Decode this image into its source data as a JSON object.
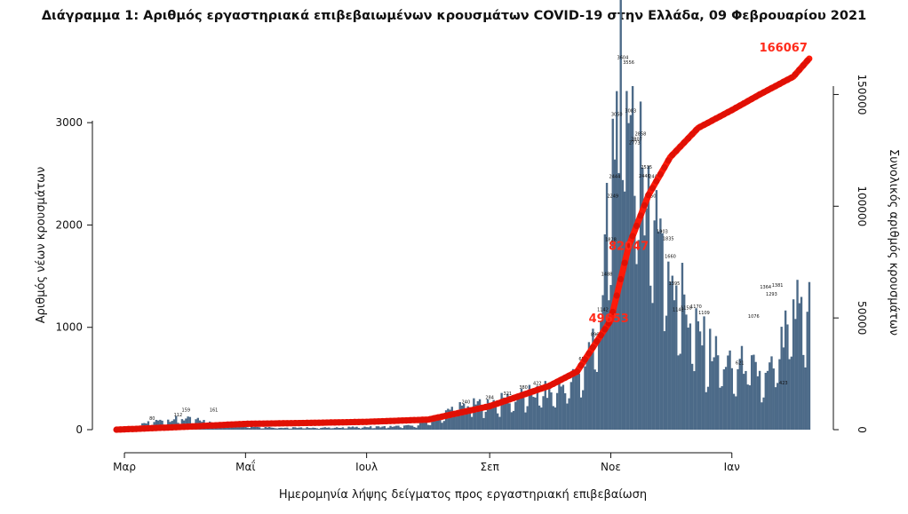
{
  "colors": {
    "bar": "#4c6a88",
    "cumulative": "#ff1a0a",
    "axis": "#111111",
    "highlight": "#ff2a1a"
  },
  "chart_data": {
    "type": "bar",
    "title": "Διάγραμμα 1: Αριθμός εργαστηριακά επιβεβαιωμένων κρουσμάτων COVID-19 στην Ελλάδα, 09 Φεβρουαρίου 2021",
    "xlabel": "Ημερομηνία λήψης δείγματος προς εργαστηριακή επιβεβαίωση",
    "ylabel": "Αριθμός νέων κρουσμάτων",
    "y2label": "Συνολικός αριθμός κρουσμάτων",
    "x_start": "2020-02-26",
    "x_end": "2021-02-09",
    "month_ticks": [
      {
        "label": "Μαρ",
        "date": "2020-03-01"
      },
      {
        "label": "Μαΐ",
        "date": "2020-05-01"
      },
      {
        "label": "Ιουλ",
        "date": "2020-07-01"
      },
      {
        "label": "Σεπ",
        "date": "2020-09-01"
      },
      {
        "label": "Νοε",
        "date": "2020-11-01"
      },
      {
        "label": "Ιαν",
        "date": "2021-01-01"
      }
    ],
    "yticks": [
      0,
      1000,
      2000,
      3000
    ],
    "ylim": [
      0,
      3700
    ],
    "y2ticks": [
      0,
      50000,
      100000,
      150000
    ],
    "y2lim": [
      0,
      166067
    ],
    "grid": false,
    "legend": "none",
    "series": [
      {
        "name": "new_cases",
        "kind": "bar",
        "anchors": [
          [
            "2020-02-26",
            1
          ],
          [
            "2020-03-05",
            20
          ],
          [
            "2020-03-15",
            80
          ],
          [
            "2020-03-28",
            110
          ],
          [
            "2020-04-05",
            100
          ],
          [
            "2020-04-20",
            60
          ],
          [
            "2020-05-05",
            30
          ],
          [
            "2020-05-20",
            20
          ],
          [
            "2020-06-10",
            20
          ],
          [
            "2020-06-25",
            25
          ],
          [
            "2020-07-10",
            30
          ],
          [
            "2020-07-25",
            40
          ],
          [
            "2020-08-05",
            110
          ],
          [
            "2020-08-15",
            230
          ],
          [
            "2020-08-25",
            250
          ],
          [
            "2020-09-05",
            280
          ],
          [
            "2020-09-15",
            330
          ],
          [
            "2020-09-25",
            370
          ],
          [
            "2020-10-05",
            400
          ],
          [
            "2020-10-15",
            530
          ],
          [
            "2020-10-22",
            850
          ],
          [
            "2020-10-27",
            1150
          ],
          [
            "2020-10-31",
            2250
          ],
          [
            "2020-11-03",
            2900
          ],
          [
            "2020-11-07",
            3600
          ],
          [
            "2020-11-10",
            3550
          ],
          [
            "2020-11-14",
            2800
          ],
          [
            "2020-11-18",
            2500
          ],
          [
            "2020-11-24",
            2300
          ],
          [
            "2020-11-28",
            1800
          ],
          [
            "2020-12-02",
            1600
          ],
          [
            "2020-12-06",
            1450
          ],
          [
            "2020-12-10",
            1150
          ],
          [
            "2020-12-15",
            950
          ],
          [
            "2020-12-20",
            850
          ],
          [
            "2020-12-27",
            700
          ],
          [
            "2021-01-02",
            600
          ],
          [
            "2021-01-08",
            700
          ],
          [
            "2021-01-13",
            580
          ],
          [
            "2021-01-18",
            500
          ],
          [
            "2021-01-24",
            700
          ],
          [
            "2021-01-29",
            1000
          ],
          [
            "2021-02-03",
            1250
          ],
          [
            "2021-02-09",
            1340
          ]
        ]
      },
      {
        "name": "cumulative",
        "kind": "line",
        "final": 166067,
        "anchors": [
          [
            "2020-02-26",
            0
          ],
          [
            "2020-04-01",
            1300
          ],
          [
            "2020-05-01",
            2600
          ],
          [
            "2020-06-01",
            3000
          ],
          [
            "2020-07-01",
            3500
          ],
          [
            "2020-08-01",
            4500
          ],
          [
            "2020-09-01",
            10500
          ],
          [
            "2020-10-01",
            19600
          ],
          [
            "2020-10-15",
            26000
          ],
          [
            "2020-11-01",
            49000
          ],
          [
            "2020-11-10",
            82000
          ],
          [
            "2020-11-20",
            105000
          ],
          [
            "2020-12-01",
            122000
          ],
          [
            "2020-12-15",
            135000
          ],
          [
            "2021-01-01",
            143000
          ],
          [
            "2021-01-15",
            150000
          ],
          [
            "2021-02-01",
            158000
          ],
          [
            "2021-02-09",
            166067
          ]
        ]
      }
    ],
    "bar_labels": [
      [
        "2020-03-15",
        "80"
      ],
      [
        "2020-03-28",
        "112"
      ],
      [
        "2020-04-01",
        "159"
      ],
      [
        "2020-04-15",
        "161"
      ],
      [
        "2020-08-20",
        "240"
      ],
      [
        "2020-09-01",
        "284"
      ],
      [
        "2020-09-10",
        "321"
      ],
      [
        "2020-09-18",
        "380"
      ],
      [
        "2020-09-25",
        "422"
      ],
      [
        "2020-10-05",
        "430"
      ],
      [
        "2020-10-12",
        "505"
      ],
      [
        "2020-10-18",
        "658"
      ],
      [
        "2020-10-24",
        "896"
      ],
      [
        "2020-10-28",
        "1142"
      ],
      [
        "2020-10-30",
        "1488"
      ],
      [
        "2020-11-01",
        "1828"
      ],
      [
        "2020-11-02",
        "2249"
      ],
      [
        "2020-11-03",
        "2444"
      ],
      [
        "2020-11-04",
        "3050"
      ],
      [
        "2020-11-07",
        "3604"
      ],
      [
        "2020-11-10",
        "3556"
      ],
      [
        "2020-11-11",
        "3083"
      ],
      [
        "2020-11-13",
        "2773"
      ],
      [
        "2020-11-14",
        "2807"
      ],
      [
        "2020-11-16",
        "2858"
      ],
      [
        "2020-11-19",
        "2535"
      ],
      [
        "2020-11-18",
        "2446"
      ],
      [
        "2020-11-23",
        "2440"
      ],
      [
        "2020-11-21",
        "2250"
      ],
      [
        "2020-11-27",
        "1903"
      ],
      [
        "2020-11-30",
        "1835"
      ],
      [
        "2020-12-01",
        "1660"
      ],
      [
        "2020-12-03",
        "1395"
      ],
      [
        "2020-12-05",
        "1142"
      ],
      [
        "2020-12-09",
        "1158"
      ],
      [
        "2020-12-14",
        "1170"
      ],
      [
        "2020-12-18",
        "1109"
      ],
      [
        "2021-01-05",
        "621"
      ],
      [
        "2021-01-12",
        "1076"
      ],
      [
        "2021-01-18",
        "1364"
      ],
      [
        "2021-01-21",
        "1293"
      ],
      [
        "2021-01-24",
        "1381"
      ],
      [
        "2021-01-27",
        "423"
      ]
    ],
    "annotations": [
      {
        "text": "166067",
        "date": "2021-02-09",
        "value": 166067
      },
      {
        "text": "82047",
        "date": "2020-11-10",
        "value": 82047
      },
      {
        "text": "49653",
        "date": "2020-10-31",
        "value": 49653
      }
    ]
  }
}
